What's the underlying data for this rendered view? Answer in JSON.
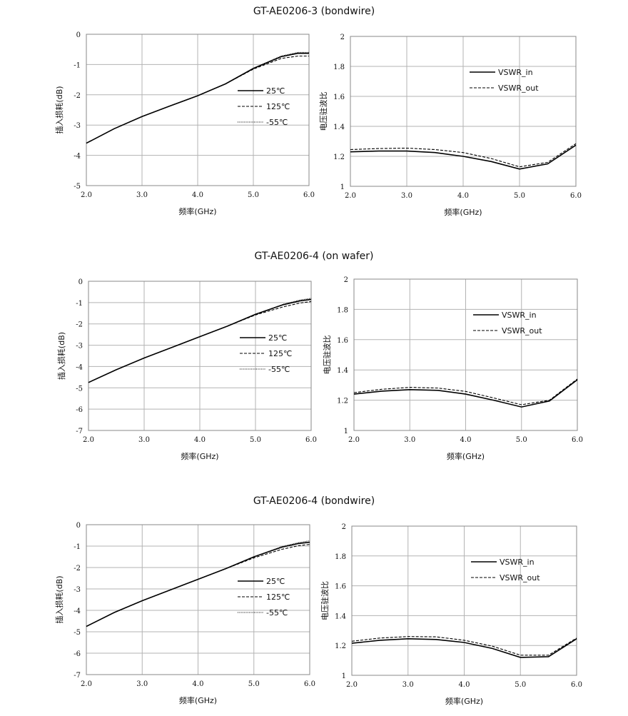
{
  "chart_data": [
    {
      "group_title": "GT-AE0206-3  (bondwire)",
      "type": "line",
      "xlabel": "频率(GHz)",
      "ylabel": "插入损耗(dB)",
      "xlim": [
        2,
        6
      ],
      "ylim": [
        -5,
        0
      ],
      "x_ticks": [
        "2.0",
        "3.0",
        "4.0",
        "5.0",
        "6.0"
      ],
      "y_ticks": [
        "0",
        "-1",
        "-2",
        "-3",
        "-4",
        "-5"
      ],
      "grid": true,
      "legend_position": "center-right",
      "x": [
        2.0,
        2.5,
        3.0,
        3.5,
        4.0,
        4.5,
        5.0,
        5.5,
        5.8,
        6.0
      ],
      "series": [
        {
          "name": "25℃",
          "style": "solid",
          "values": [
            -3.6,
            -3.12,
            -2.72,
            -2.37,
            -2.03,
            -1.64,
            -1.13,
            -0.74,
            -0.63,
            -0.63
          ]
        },
        {
          "name": "125℃",
          "style": "dashed",
          "values": [
            -3.6,
            -3.12,
            -2.72,
            -2.37,
            -2.03,
            -1.64,
            -1.15,
            -0.8,
            -0.72,
            -0.72
          ]
        },
        {
          "name": "-55℃",
          "style": "dotted",
          "values": [
            -3.6,
            -3.12,
            -2.72,
            -2.37,
            -2.03,
            -1.64,
            -1.12,
            -0.72,
            -0.6,
            -0.6
          ]
        }
      ]
    },
    {
      "group_title": "",
      "type": "line",
      "xlabel": "频率(GHz)",
      "ylabel": "电压驻波比",
      "xlim": [
        2,
        6
      ],
      "ylim": [
        1,
        2
      ],
      "x_ticks": [
        "2.0",
        "3.0",
        "4.0",
        "5.0",
        "6.0"
      ],
      "y_ticks": [
        "2",
        "1.8",
        "1.6",
        "1.4",
        "1.2",
        "1"
      ],
      "grid": true,
      "legend_position": "top-right",
      "x": [
        2.0,
        2.5,
        3.0,
        3.5,
        4.0,
        4.5,
        5.0,
        5.5,
        6.0
      ],
      "series": [
        {
          "name": "VSWR_in",
          "style": "solid",
          "values": [
            1.23,
            1.235,
            1.235,
            1.225,
            1.2,
            1.165,
            1.115,
            1.15,
            1.275
          ]
        },
        {
          "name": "VSWR_out",
          "style": "dashed",
          "values": [
            1.245,
            1.252,
            1.255,
            1.245,
            1.225,
            1.185,
            1.13,
            1.16,
            1.285
          ]
        }
      ]
    },
    {
      "group_title": "GT-AE0206-4  (on wafer)",
      "type": "line",
      "xlabel": "频率(GHz)",
      "ylabel": "插入损耗(dB)",
      "xlim": [
        2,
        6
      ],
      "ylim": [
        -7,
        0
      ],
      "x_ticks": [
        "2.0",
        "3.0",
        "4.0",
        "5.0",
        "6.0"
      ],
      "y_ticks": [
        "0",
        "-1",
        "-2",
        "-3",
        "-4",
        "-5",
        "-6",
        "-7"
      ],
      "grid": true,
      "legend_position": "center-right",
      "x": [
        2.0,
        2.5,
        3.0,
        3.5,
        4.0,
        4.5,
        5.0,
        5.5,
        5.8,
        6.0
      ],
      "series": [
        {
          "name": "25℃",
          "style": "solid",
          "values": [
            -4.75,
            -4.15,
            -3.6,
            -3.1,
            -2.6,
            -2.1,
            -1.55,
            -1.1,
            -0.92,
            -0.85
          ]
        },
        {
          "name": "125℃",
          "style": "dashed",
          "values": [
            -4.75,
            -4.15,
            -3.6,
            -3.1,
            -2.6,
            -2.1,
            -1.58,
            -1.2,
            -1.02,
            -0.95
          ]
        },
        {
          "name": "-55℃",
          "style": "dotted",
          "values": [
            -4.75,
            -4.15,
            -3.6,
            -3.1,
            -2.6,
            -2.1,
            -1.55,
            -1.08,
            -0.88,
            -0.8
          ]
        }
      ]
    },
    {
      "group_title": "",
      "type": "line",
      "xlabel": "频率(GHz)",
      "ylabel": "电压驻波比",
      "xlim": [
        2,
        6
      ],
      "ylim": [
        1,
        2
      ],
      "x_ticks": [
        "2.0",
        "3.0",
        "4.0",
        "5.0",
        "6.0"
      ],
      "y_ticks": [
        "2",
        "1.8",
        "1.6",
        "1.4",
        "1.2",
        "1"
      ],
      "grid": true,
      "legend_position": "top-right",
      "x": [
        2.0,
        2.5,
        3.0,
        3.5,
        4.0,
        4.5,
        5.0,
        5.5,
        6.0
      ],
      "series": [
        {
          "name": "VSWR_in",
          "style": "solid",
          "values": [
            1.24,
            1.26,
            1.27,
            1.265,
            1.24,
            1.2,
            1.155,
            1.195,
            1.335
          ]
        },
        {
          "name": "VSWR_out",
          "style": "dashed",
          "values": [
            1.25,
            1.272,
            1.285,
            1.28,
            1.258,
            1.215,
            1.17,
            1.2,
            1.34
          ]
        }
      ]
    },
    {
      "group_title": "GT-AE0206-4  (bondwire)",
      "type": "line",
      "xlabel": "频率(GHz)",
      "ylabel": "插入损耗(dB)",
      "xlim": [
        2,
        6
      ],
      "ylim": [
        -7,
        0
      ],
      "x_ticks": [
        "2.0",
        "3.0",
        "4.0",
        "5.0",
        "6.0"
      ],
      "y_ticks": [
        "0",
        "-1",
        "-2",
        "-3",
        "-4",
        "-5",
        "-6",
        "-7"
      ],
      "grid": true,
      "legend_position": "center-right",
      "x": [
        2.0,
        2.5,
        3.0,
        3.5,
        4.0,
        4.5,
        5.0,
        5.5,
        5.8,
        6.0
      ],
      "series": [
        {
          "name": "25℃",
          "style": "solid",
          "values": [
            -4.75,
            -4.1,
            -3.55,
            -3.05,
            -2.55,
            -2.05,
            -1.5,
            -1.05,
            -0.88,
            -0.82
          ]
        },
        {
          "name": "125℃",
          "style": "dashed",
          "values": [
            -4.75,
            -4.1,
            -3.55,
            -3.05,
            -2.55,
            -2.05,
            -1.55,
            -1.15,
            -0.98,
            -0.92
          ]
        },
        {
          "name": "-55℃",
          "style": "dotted",
          "values": [
            -4.75,
            -4.1,
            -3.55,
            -3.05,
            -2.55,
            -2.05,
            -1.5,
            -1.02,
            -0.84,
            -0.75
          ]
        }
      ]
    },
    {
      "group_title": "",
      "type": "line",
      "xlabel": "频率(GHz)",
      "ylabel": "电压驻波比",
      "xlim": [
        2,
        6
      ],
      "ylim": [
        1,
        2
      ],
      "x_ticks": [
        "2.0",
        "3.0",
        "4.0",
        "5.0",
        "6.0"
      ],
      "y_ticks": [
        "2",
        "1.8",
        "1.6",
        "1.4",
        "1.2",
        "1"
      ],
      "grid": true,
      "legend_position": "top-right",
      "x": [
        2.0,
        2.5,
        3.0,
        3.5,
        4.0,
        4.5,
        5.0,
        5.5,
        6.0
      ],
      "series": [
        {
          "name": "VSWR_in",
          "style": "solid",
          "values": [
            1.215,
            1.235,
            1.245,
            1.24,
            1.22,
            1.18,
            1.12,
            1.125,
            1.245
          ]
        },
        {
          "name": "VSWR_out",
          "style": "dashed",
          "values": [
            1.228,
            1.25,
            1.26,
            1.258,
            1.235,
            1.195,
            1.135,
            1.135,
            1.25
          ]
        }
      ]
    }
  ]
}
